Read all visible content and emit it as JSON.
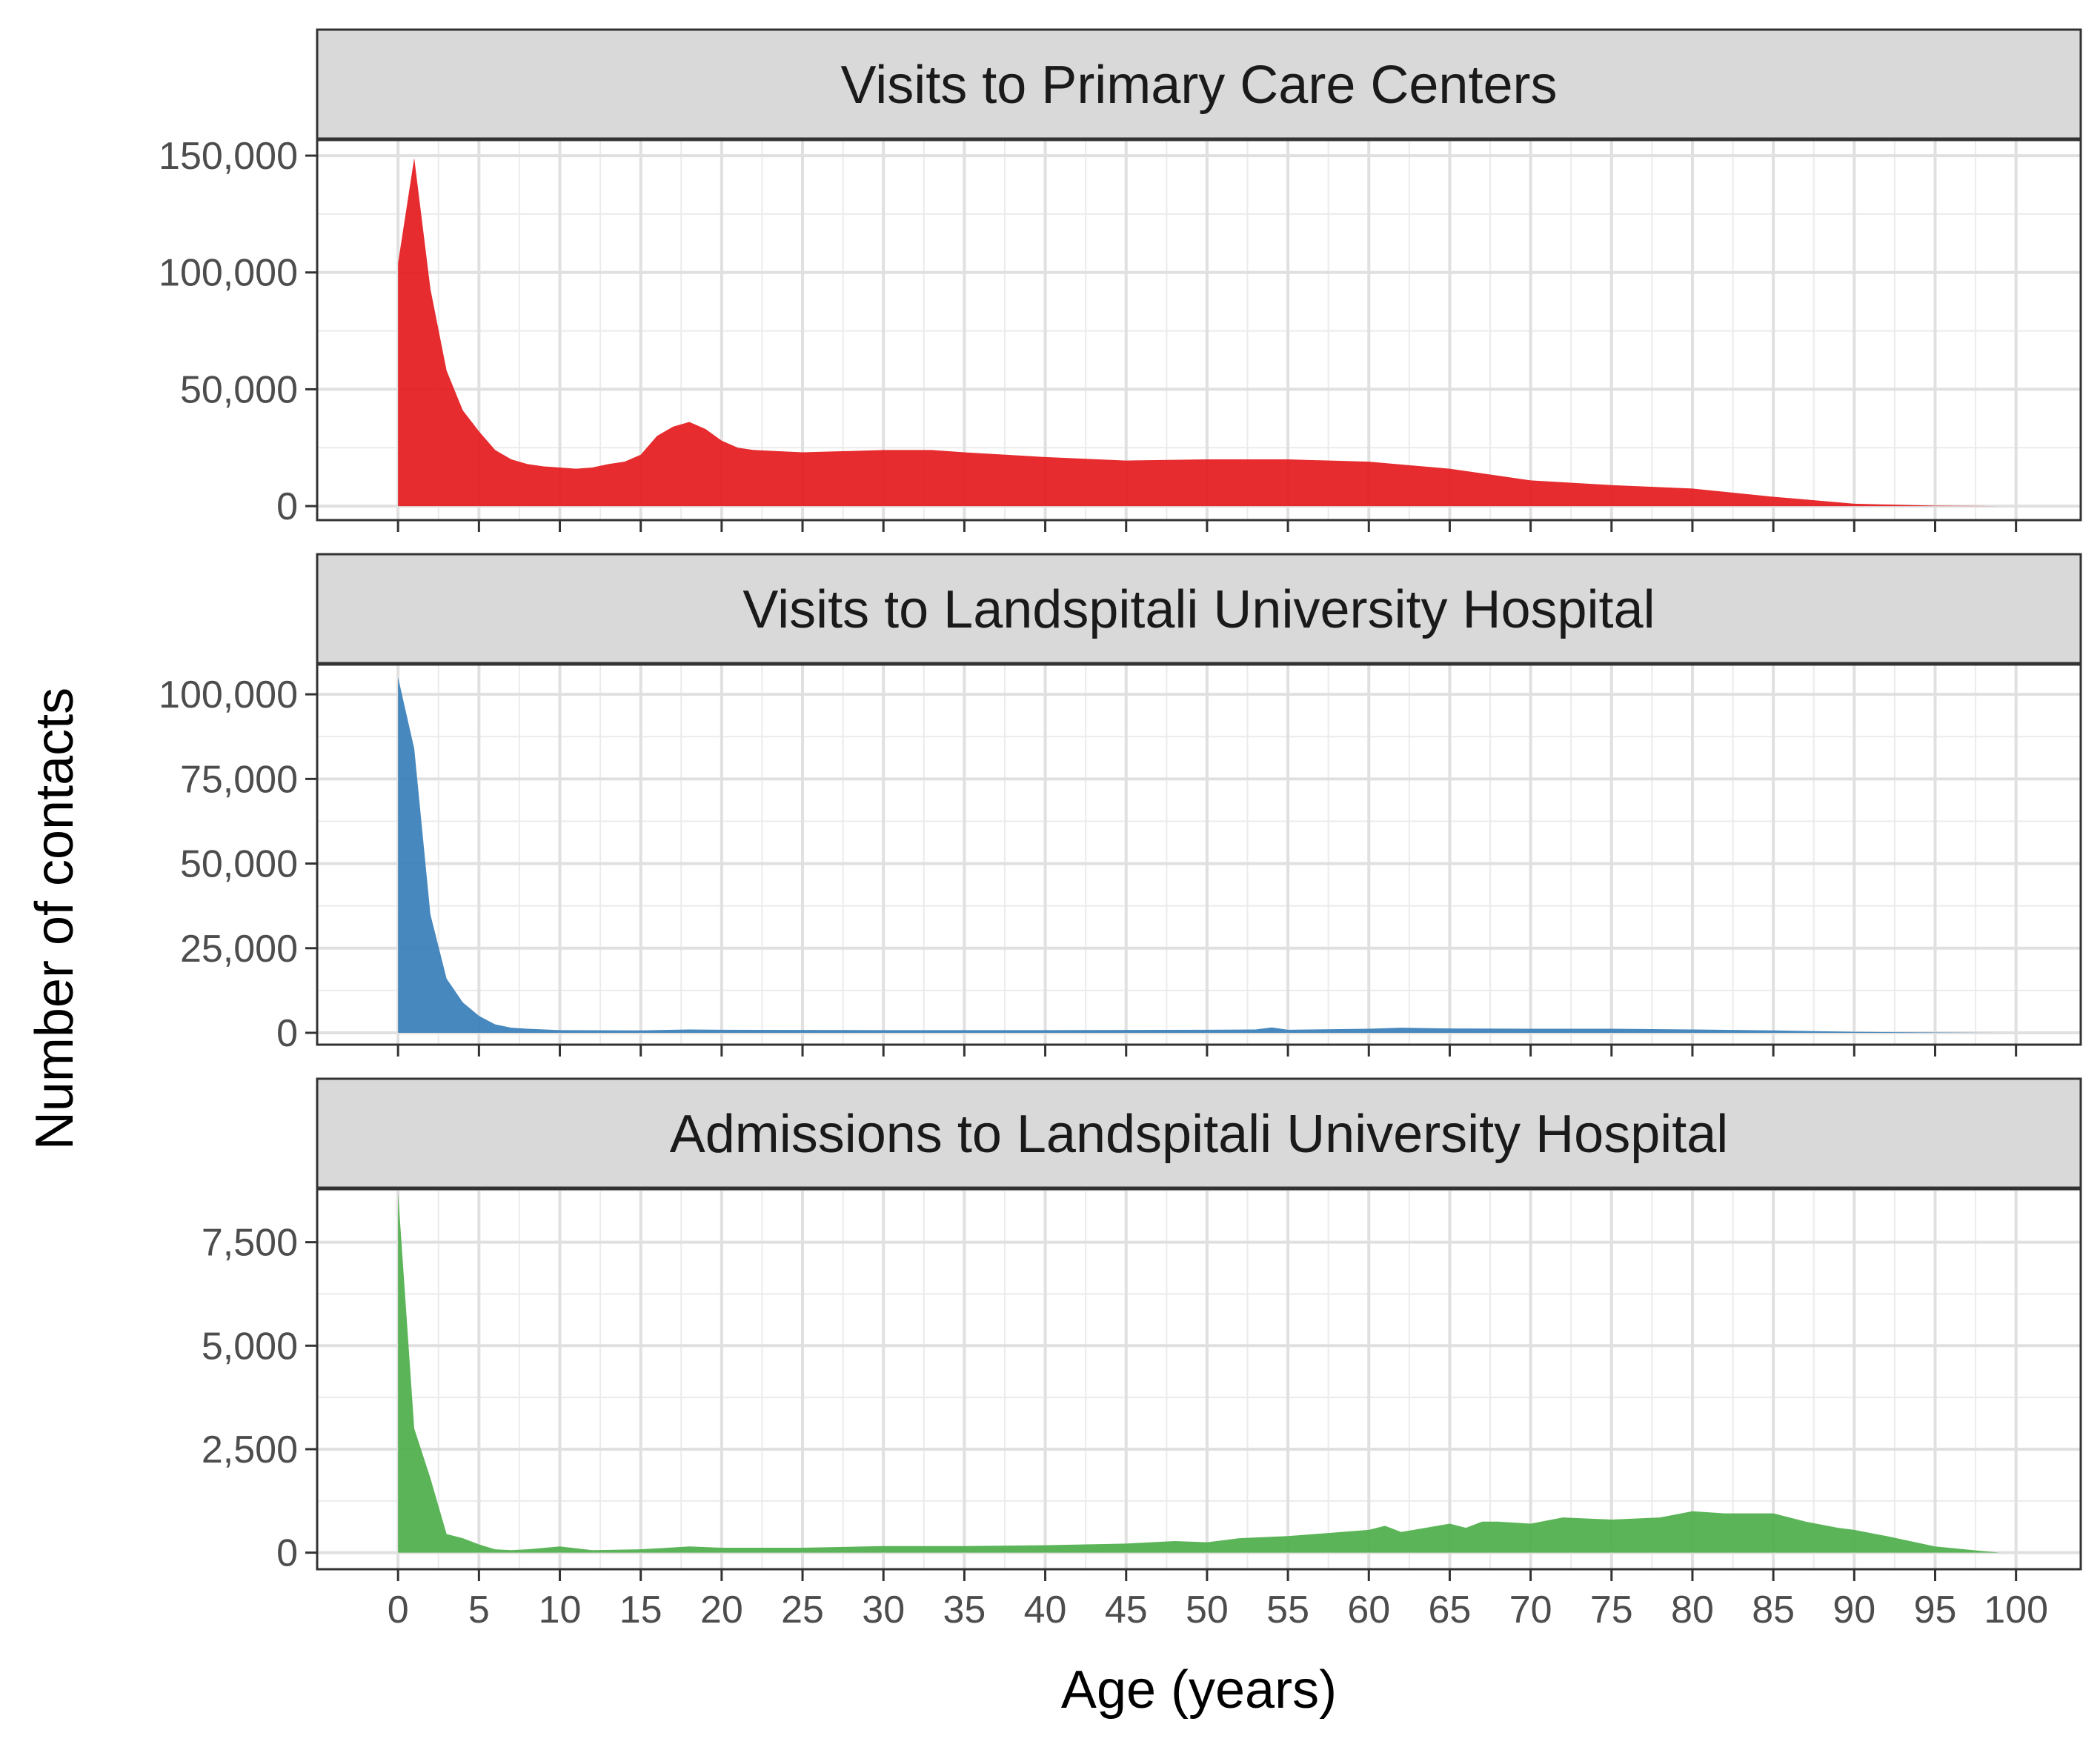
{
  "chart_data": {
    "type": "area",
    "facet_layout": "vertical",
    "xlabel": "Age (years)",
    "ylabel": "Number of contacts",
    "x_ticks": [
      0,
      5,
      10,
      15,
      20,
      25,
      30,
      35,
      40,
      45,
      50,
      55,
      60,
      65,
      70,
      75,
      80,
      85,
      90,
      95,
      100
    ],
    "xlim": [
      -5,
      104
    ],
    "grid": true,
    "legend": "none",
    "panels": [
      {
        "title": "Visits to Primary Care Centers",
        "color": "#E41A1C",
        "ylim": [
          -6000,
          157000
        ],
        "y_ticks": [
          0,
          50000,
          100000,
          150000
        ],
        "y_tick_labels": [
          "0",
          "50,000",
          "100,000",
          "150,000"
        ],
        "x": [
          0,
          1,
          2,
          3,
          4,
          5,
          6,
          7,
          8,
          9,
          10,
          11,
          12,
          13,
          14,
          15,
          16,
          17,
          18,
          19,
          20,
          21,
          22,
          25,
          30,
          33,
          35,
          40,
          45,
          50,
          55,
          60,
          65,
          70,
          75,
          80,
          85,
          90,
          95,
          99
        ],
        "values": [
          104000,
          149000,
          93000,
          58000,
          41000,
          32000,
          24000,
          20000,
          18000,
          17000,
          16500,
          16000,
          16500,
          18000,
          19000,
          22000,
          30000,
          34000,
          36000,
          33000,
          28000,
          25000,
          24000,
          23000,
          24000,
          24000,
          23000,
          21000,
          19500,
          20000,
          20000,
          19000,
          16000,
          11000,
          9000,
          7500,
          4000,
          1000,
          200,
          0
        ]
      },
      {
        "title": "Visits to Landspitali University Hospital",
        "color": "#377EB8",
        "ylim": [
          -3500,
          109000
        ],
        "y_ticks": [
          0,
          25000,
          50000,
          75000,
          100000
        ],
        "y_tick_labels": [
          "0",
          "25,000",
          "50,000",
          "75,000",
          "100,000"
        ],
        "x": [
          0,
          1,
          2,
          3,
          4,
          5,
          6,
          7,
          8,
          10,
          15,
          18,
          20,
          30,
          40,
          50,
          53,
          54,
          55,
          60,
          62,
          65,
          70,
          75,
          80,
          85,
          90,
          95,
          99
        ],
        "values": [
          105000,
          84000,
          35000,
          16000,
          9000,
          5000,
          2500,
          1500,
          1200,
          800,
          700,
          1000,
          900,
          800,
          800,
          900,
          1000,
          1600,
          900,
          1200,
          1500,
          1300,
          1200,
          1200,
          1000,
          700,
          300,
          100,
          0
        ]
      },
      {
        "title": "Admissions to Landspitali University Hospital",
        "color": "#4DAF4A",
        "ylim": [
          -400,
          8800
        ],
        "y_ticks": [
          0,
          2500,
          5000,
          7500
        ],
        "y_tick_labels": [
          "0",
          "2,500",
          "5,000",
          "7,500"
        ],
        "x": [
          0,
          1,
          2,
          3,
          4,
          5,
          6,
          7,
          8,
          10,
          12,
          15,
          18,
          20,
          25,
          30,
          35,
          40,
          45,
          48,
          50,
          52,
          55,
          60,
          61,
          62,
          65,
          66,
          67,
          68,
          70,
          72,
          75,
          78,
          80,
          82,
          85,
          87,
          89,
          90,
          92,
          95,
          99
        ],
        "values": [
          8700,
          3000,
          1800,
          450,
          350,
          200,
          80,
          60,
          80,
          150,
          60,
          80,
          150,
          120,
          120,
          160,
          160,
          180,
          220,
          280,
          250,
          350,
          400,
          550,
          650,
          500,
          700,
          600,
          750,
          750,
          700,
          850,
          800,
          850,
          1000,
          950,
          950,
          750,
          600,
          550,
          400,
          150,
          0
        ]
      }
    ]
  }
}
